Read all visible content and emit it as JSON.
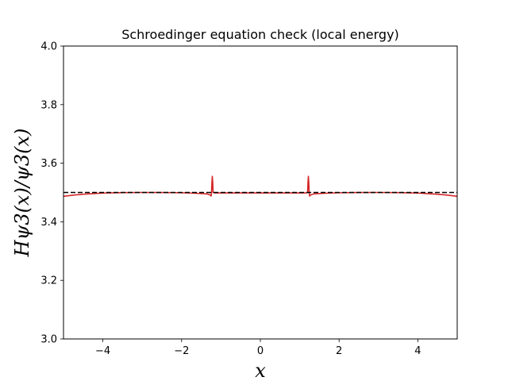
{
  "chart_data": {
    "type": "line",
    "title": "Schroedinger equation check (local energy)",
    "xlabel": "x",
    "ylabel": "Hψ3(x)/ψ3(x)",
    "xlim": [
      -5,
      5
    ],
    "ylim": [
      3.0,
      4.0
    ],
    "xticks": [
      -4,
      -2,
      0,
      2,
      4
    ],
    "xtick_labels": [
      "−4",
      "−2",
      "0",
      "2",
      "4"
    ],
    "yticks": [
      3.0,
      3.2,
      3.4,
      3.6,
      3.8,
      4.0
    ],
    "ytick_labels": [
      "3.0",
      "3.2",
      "3.4",
      "3.6",
      "3.8",
      "4.0"
    ],
    "grid": false,
    "legend": "none",
    "colors": {
      "series": "#d62728",
      "reference": "#000000"
    },
    "series": [
      {
        "style": "solid",
        "x": [
          -5.0,
          -4.75,
          -4.5,
          -4.25,
          -4.0,
          -3.5,
          -3.0,
          -2.5,
          -2.0,
          -1.75,
          -1.5,
          -1.35,
          -1.28,
          -1.25,
          -1.24,
          -1.23,
          -1.22,
          -1.21,
          -1.2,
          -1.19,
          -1.18,
          -1.15,
          -1.0,
          -0.5,
          0.0,
          0.5,
          1.0,
          1.15,
          1.18,
          1.19,
          1.2,
          1.21,
          1.22,
          1.23,
          1.24,
          1.25,
          1.28,
          1.35,
          1.5,
          1.75,
          2.0,
          2.5,
          3.0,
          3.5,
          4.0,
          4.25,
          4.5,
          4.75,
          5.0
        ],
        "y": [
          3.487,
          3.491,
          3.494,
          3.496,
          3.498,
          3.4995,
          3.5,
          3.4998,
          3.499,
          3.498,
          3.4965,
          3.495,
          3.492,
          3.488,
          3.5,
          3.535,
          3.555,
          3.535,
          3.5,
          3.5,
          3.499,
          3.4985,
          3.4985,
          3.4985,
          3.4985,
          3.4985,
          3.4985,
          3.4985,
          3.499,
          3.5,
          3.5,
          3.535,
          3.555,
          3.535,
          3.5,
          3.488,
          3.492,
          3.495,
          3.4965,
          3.498,
          3.499,
          3.4998,
          3.5,
          3.4995,
          3.498,
          3.496,
          3.494,
          3.491,
          3.487
        ]
      },
      {
        "style": "dashed",
        "x": [
          -5,
          5
        ],
        "y": [
          3.5,
          3.5
        ]
      }
    ]
  }
}
